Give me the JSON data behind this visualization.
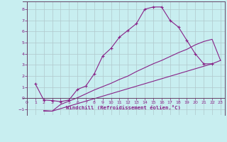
{
  "xlabel": "Windchill (Refroidissement éolien,°C)",
  "bg_color": "#c8eef0",
  "line_color": "#882288",
  "grid_color": "#b0c8cc",
  "xlim": [
    -0.5,
    23.5
  ],
  "ylim": [
    -1.5,
    8.7
  ],
  "yticks": [
    -1,
    0,
    1,
    2,
    3,
    4,
    5,
    6,
    7,
    8
  ],
  "xticks": [
    0,
    1,
    2,
    3,
    4,
    5,
    6,
    7,
    8,
    9,
    10,
    11,
    12,
    13,
    14,
    15,
    16,
    17,
    18,
    19,
    20,
    21,
    22,
    23
  ],
  "series1_x": [
    1,
    2,
    3,
    4,
    5,
    6,
    7,
    8,
    9,
    10,
    11,
    12,
    13,
    14,
    15,
    16,
    17,
    18,
    19,
    20,
    21,
    22
  ],
  "series1_y": [
    1.3,
    -0.15,
    -0.2,
    -0.3,
    -0.15,
    0.8,
    1.1,
    2.2,
    3.8,
    4.5,
    5.5,
    6.1,
    6.7,
    8.0,
    8.2,
    8.2,
    7.0,
    6.4,
    5.2,
    4.0,
    3.1,
    3.1
  ],
  "series2_x": [
    2,
    3,
    4,
    5,
    6,
    7,
    8,
    9,
    10,
    11,
    12,
    13,
    14,
    15,
    16,
    17,
    18,
    19,
    20,
    21,
    22,
    23
  ],
  "series2_y": [
    -1.15,
    -1.15,
    -0.55,
    -0.25,
    0.05,
    0.4,
    0.75,
    1.05,
    1.35,
    1.7,
    2.0,
    2.4,
    2.75,
    3.1,
    3.4,
    3.75,
    4.1,
    4.4,
    4.8,
    5.1,
    5.3,
    3.4
  ],
  "series3_x": [
    2,
    3,
    22,
    23
  ],
  "series3_y": [
    -1.1,
    -1.15,
    3.1,
    3.4
  ]
}
